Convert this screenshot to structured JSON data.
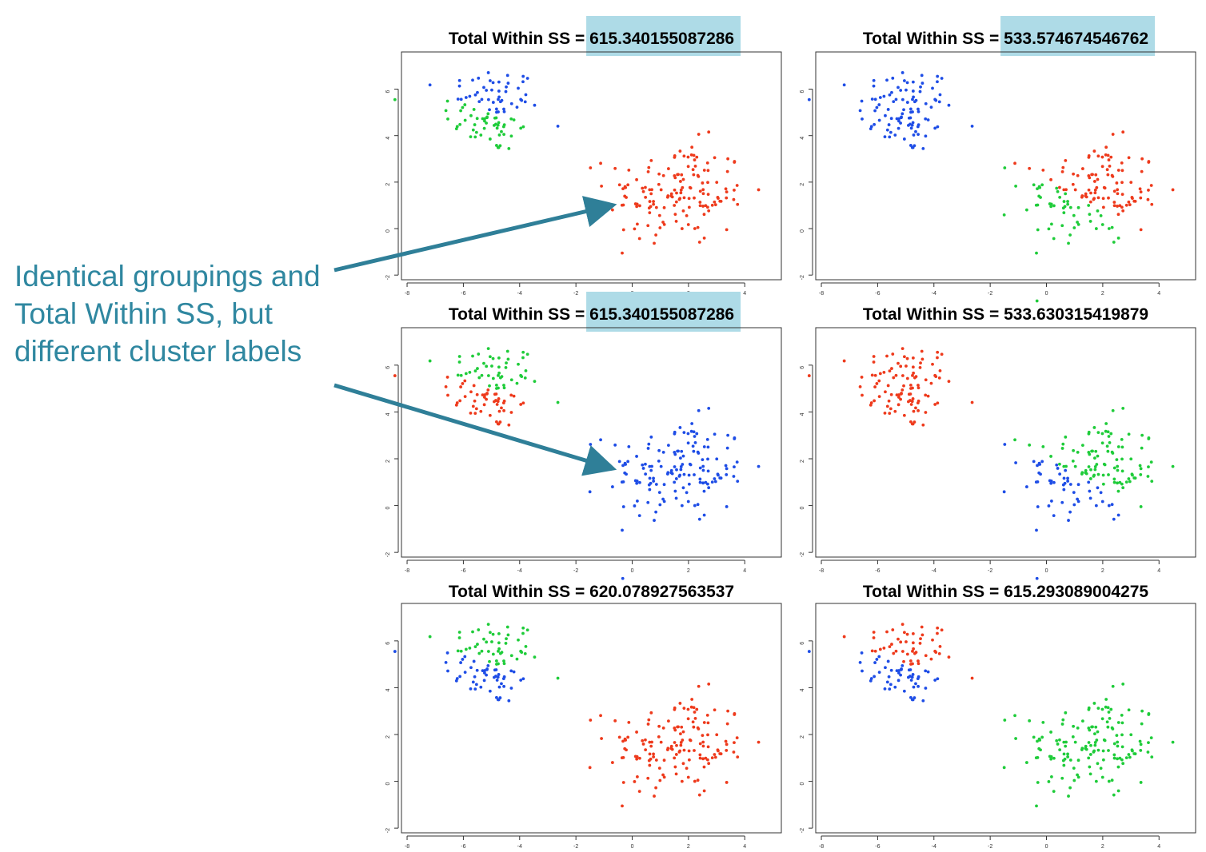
{
  "annotation": {
    "text": "Identical groupings and Total Within SS, but different cluster labels"
  },
  "colors": {
    "red": "#ee3a1c",
    "green": "#1fcc3a",
    "blue": "#1e4de6",
    "highlight": "#aedbe7",
    "arrow": "#2f7f98",
    "annotation_text": "#2f87a0"
  },
  "axes": {
    "xlim": [
      -8.2,
      5.3
    ],
    "ylim": [
      -2.2,
      7.6
    ],
    "xticks": [
      "-8",
      "-6",
      "-4",
      "-2",
      "0",
      "2",
      "4"
    ],
    "xtick_values": [
      -8,
      -6,
      -4,
      -2,
      0,
      2,
      4
    ],
    "yticks": [
      "-2",
      "0",
      "2",
      "4",
      "6"
    ],
    "ytick_values": [
      -2,
      0,
      2,
      4,
      6
    ]
  },
  "chart_data": [
    {
      "type": "scatter",
      "title_prefix": "Total Within SS = ",
      "title_value": "615.340155087286",
      "highlighted": true,
      "assignment": {
        "cluster_left_top": "blue",
        "cluster_left_bottom": "green",
        "cluster_right": "red"
      }
    },
    {
      "type": "scatter",
      "title_prefix": "Total Within SS = ",
      "title_value": "533.574674546762",
      "highlighted": true,
      "assignment": {
        "cluster_left": "blue",
        "cluster_right_top": "red",
        "cluster_right_bottom": "green"
      }
    },
    {
      "type": "scatter",
      "title_prefix": "Total Within SS = ",
      "title_value": "615.340155087286",
      "highlighted": true,
      "assignment": {
        "cluster_left_top": "green",
        "cluster_left_bottom": "red",
        "cluster_right": "blue"
      }
    },
    {
      "type": "scatter",
      "title_prefix": "Total Within SS = ",
      "title_value": "533.630315419879",
      "highlighted": false,
      "assignment": {
        "cluster_left": "red",
        "cluster_right_top": "green",
        "cluster_right_bottom": "blue"
      }
    },
    {
      "type": "scatter",
      "title_prefix": "Total Within SS = ",
      "title_value": "620.078927563537",
      "highlighted": false,
      "assignment": {
        "cluster_left_top": "green",
        "cluster_left_bottom": "blue",
        "cluster_right": "red"
      }
    },
    {
      "type": "scatter",
      "title_prefix": "Total Within SS = ",
      "title_value": "615.293089004275",
      "highlighted": false,
      "assignment": {
        "cluster_left_top": "red",
        "cluster_left_bottom": "blue",
        "cluster_right": "green"
      }
    }
  ]
}
